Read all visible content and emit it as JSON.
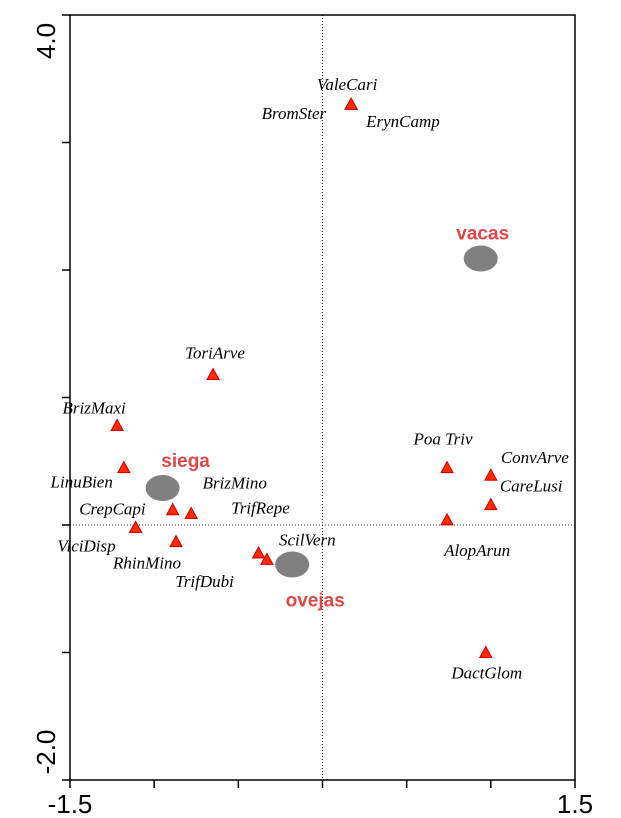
{
  "chart_data": {
    "type": "scatter",
    "xlim": [
      -1.5,
      1.5
    ],
    "xticks": [
      -1.5,
      {
        "value": -1,
        "label": null
      },
      {
        "value": -0.5,
        "label": null
      },
      {
        "value": 0,
        "label": null
      },
      {
        "value": 0.5,
        "label": null
      },
      {
        "value": 1,
        "label": null
      },
      1.5
    ],
    "ylim": [
      -2,
      4
    ],
    "yticks": [
      {
        "value": -2,
        "label": "-2.0"
      },
      {
        "value": -1,
        "label": null
      },
      {
        "value": 0,
        "label": null
      },
      {
        "value": 1,
        "label": null
      },
      {
        "value": 2,
        "label": null
      },
      {
        "value": 3,
        "label": null
      },
      {
        "value": 4,
        "label": "4.0"
      }
    ],
    "series": [
      {
        "marker": "triangle",
        "color": "#ff2a00",
        "label_color": "#000000",
        "labels": [
          "ValeCari",
          "BromSter",
          "ErynCamp",
          "ToriArve",
          "BrizMaxi",
          "LinuBien",
          "BrizMino",
          "TrifRepe",
          "CrepCapi",
          "ViciDisp",
          "RhinMino",
          "TrifDubi",
          "ScilVern",
          "Poa Triv",
          "ConvArve",
          "CareLusi",
          "AlopArun",
          "DactGlom"
        ],
        "x": [
          0.17,
          0.17,
          0.17,
          -0.65,
          -1.22,
          -1.18,
          -0.89,
          -0.78,
          -1.11,
          -1.11,
          -0.87,
          -0.38,
          -0.33,
          0.74,
          1.0,
          1.0,
          0.74,
          0.97
        ],
        "values": [
          3.3,
          3.3,
          3.3,
          1.18,
          0.78,
          0.45,
          0.12,
          0.09,
          -0.02,
          -0.02,
          -0.13,
          -0.22,
          -0.27,
          0.45,
          0.39,
          0.16,
          0.04,
          -1.0
        ]
      },
      {
        "marker": "circle",
        "color": "#808080",
        "label_color": "#e04848",
        "labels": [
          "vacas",
          "siega",
          "ovejas"
        ],
        "x": [
          0.94,
          -0.95,
          -0.18
        ],
        "values": [
          2.09,
          0.29,
          -0.31
        ]
      }
    ]
  }
}
